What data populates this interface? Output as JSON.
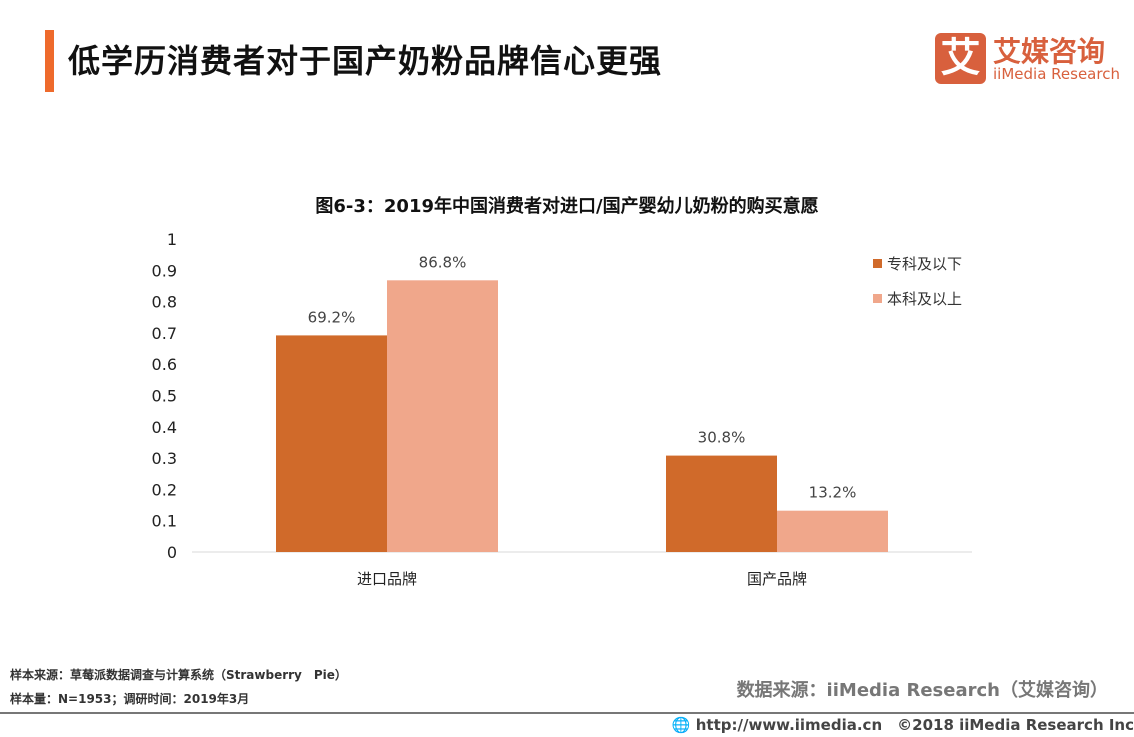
{
  "header": {
    "title": "低学历消费者对于国产奶粉品牌信心更强",
    "logo_icon": "艾",
    "logo_cn": "艾媒咨询",
    "logo_en": "iiMedia Research",
    "accent": "#ee6a2c"
  },
  "chart_data": {
    "type": "bar",
    "title": "图6-3：2019年中国消费者对进口/国产婴幼儿奶粉的购买意愿",
    "categories": [
      "进口品牌",
      "国产品牌"
    ],
    "series": [
      {
        "name": "专科及以下",
        "values": [
          0.692,
          0.308
        ],
        "labels": [
          "69.2%",
          "30.8%"
        ],
        "color": "#d06a2a"
      },
      {
        "name": "本科及以上",
        "values": [
          0.868,
          0.132
        ],
        "labels": [
          "86.8%",
          "13.2%"
        ],
        "color": "#f0a78b"
      }
    ],
    "yticks": [
      "0",
      "0.1",
      "0.2",
      "0.3",
      "0.4",
      "0.5",
      "0.6",
      "0.7",
      "0.8",
      "0.9",
      "1"
    ],
    "ylim": [
      0,
      1
    ],
    "grid": false,
    "legend": "top-right"
  },
  "footer": {
    "sample_source": "样本来源：草莓派数据调查与计算系统（Strawberry　Pie）",
    "sample_size": "样本量：N=1953；调研时间：2019年3月",
    "data_source": "数据来源：iiMedia Research（艾媒咨询）",
    "copyright": "http://www.iimedia.cn　©2018  iiMedia Research  Inc",
    "globe_icon": "globe-icon"
  }
}
